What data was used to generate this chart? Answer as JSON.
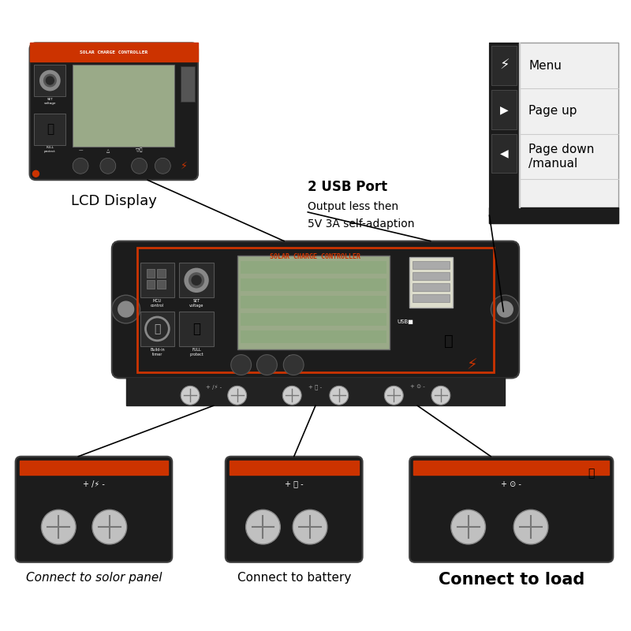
{
  "bg_color": "#ffffff",
  "device_color": "#1c1c1c",
  "red_accent": "#cc3300",
  "white": "#ffffff",
  "gray": "#888888",
  "light_gray": "#cccccc",
  "lcd_color": "#9aaa88",
  "lcd_label": "LCD Display",
  "usb_label_line1": "2 USB Port",
  "usb_label_line2": "Output less then",
  "usb_label_line3": "5V 3A self-adaption",
  "menu_items": [
    "Menu",
    "Page up",
    "Page down\n/manual"
  ],
  "bottom_labels": [
    {
      "text": "Connect to solor panel",
      "style": "italic",
      "fontsize": 11
    },
    {
      "text": "Connect to battery",
      "style": "normal",
      "fontsize": 11
    },
    {
      "text": "Connect to load",
      "style": "bold",
      "fontsize": 15
    }
  ]
}
